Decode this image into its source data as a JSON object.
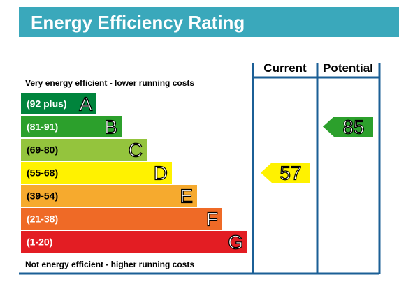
{
  "header": {
    "title": "Energy Efficiency Rating",
    "background_color": "#3aa8bb"
  },
  "columns": {
    "current": "Current",
    "potential": "Potential"
  },
  "top_label": "Very energy efficient - lower running costs",
  "bottom_label": "Not energy efficient - higher running costs",
  "frame_color": "#1b5f96",
  "chart_data": {
    "type": "bar",
    "bands": [
      {
        "letter": "A",
        "range": "(92 plus)",
        "color": "#00843c"
      },
      {
        "letter": "B",
        "range": "(81-91)",
        "color": "#2ca02c"
      },
      {
        "letter": "C",
        "range": "(69-80)",
        "color": "#94c43d"
      },
      {
        "letter": "D",
        "range": "(55-68)",
        "color": "#fff200"
      },
      {
        "letter": "E",
        "range": "(39-54)",
        "color": "#f6aa2e"
      },
      {
        "letter": "F",
        "range": "(21-38)",
        "color": "#ef6a26"
      },
      {
        "letter": "G",
        "range": "(1-20)",
        "color": "#e31d23"
      }
    ],
    "current": {
      "value": "57",
      "band": "D",
      "color": "#fff200"
    },
    "potential": {
      "value": "85",
      "band": "B",
      "color": "#2ca02c"
    }
  }
}
